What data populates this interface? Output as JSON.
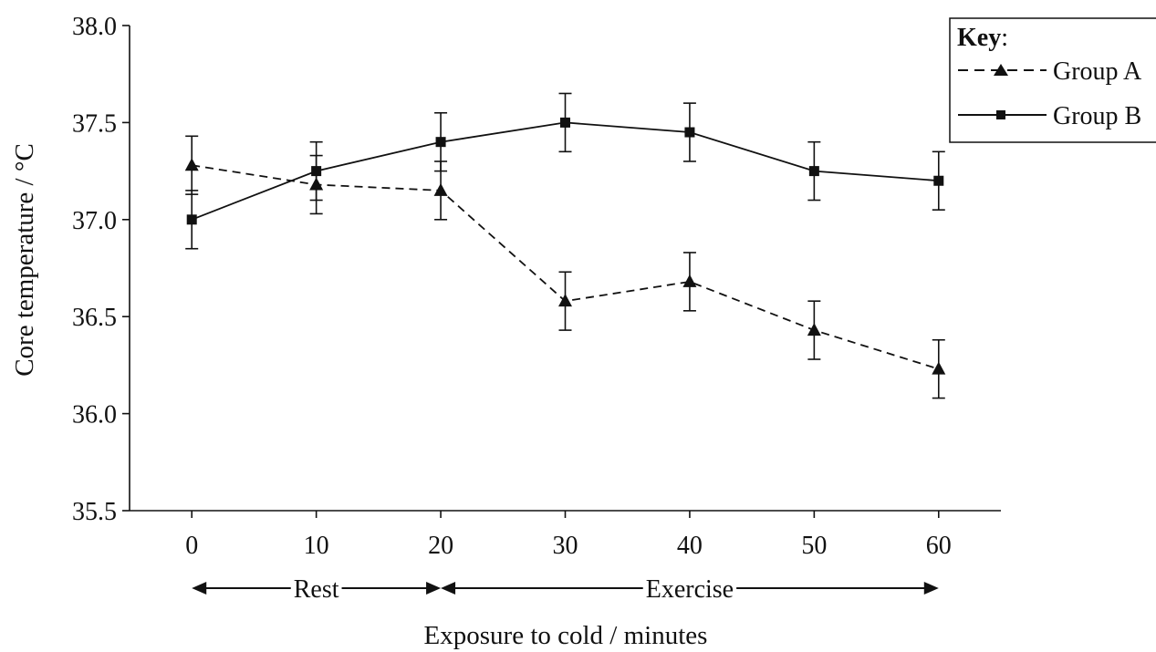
{
  "chart_data": {
    "type": "line",
    "title": "",
    "xlabel": "Exposure to cold / minutes",
    "ylabel": "Core temperature / °C",
    "x": [
      0,
      10,
      20,
      30,
      40,
      50,
      60
    ],
    "xlim": [
      -5,
      65
    ],
    "ylim": [
      35.5,
      38.0
    ],
    "x_ticks": [
      "0",
      "10",
      "20",
      "30",
      "40",
      "50",
      "60"
    ],
    "y_ticks": [
      "35.5",
      "36.0",
      "36.5",
      "37.0",
      "37.5",
      "38.0"
    ],
    "grid": false,
    "series": [
      {
        "name": "Group A",
        "line_style": "dashed",
        "marker": "triangle",
        "values": [
          37.28,
          37.18,
          37.15,
          36.58,
          36.68,
          36.43,
          36.23
        ],
        "error": [
          0.15,
          0.15,
          0.15,
          0.15,
          0.15,
          0.15,
          0.15
        ]
      },
      {
        "name": "Group B",
        "line_style": "solid",
        "marker": "square",
        "values": [
          37.0,
          37.25,
          37.4,
          37.5,
          37.45,
          37.25,
          37.2
        ],
        "error": [
          0.15,
          0.15,
          0.15,
          0.15,
          0.15,
          0.15,
          0.15
        ]
      }
    ],
    "legend": {
      "title": "Key",
      "title_suffix": ":",
      "placement": "top-right"
    },
    "phases": [
      {
        "label": "Rest",
        "from": 0,
        "to": 20
      },
      {
        "label": "Exercise",
        "from": 20,
        "to": 60
      }
    ],
    "colors": {
      "ink": "#111111",
      "background": "#ffffff"
    }
  }
}
